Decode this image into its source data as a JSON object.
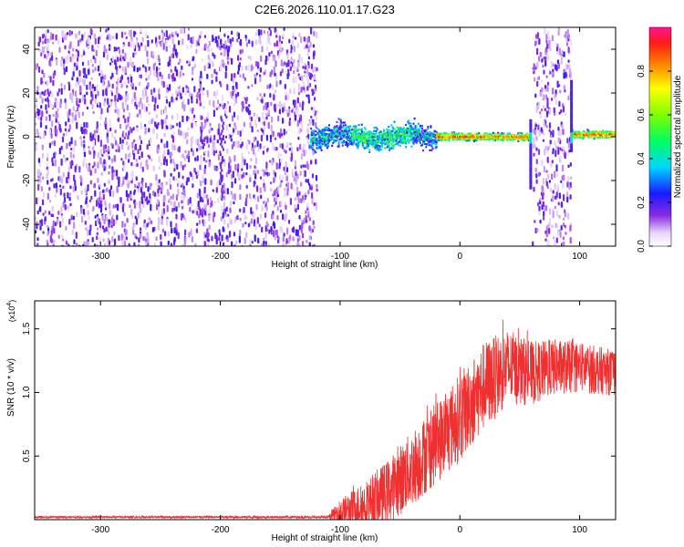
{
  "title": "C2E6.2026.110.01.17.G23",
  "colors": {
    "snr_line": "#ee3030",
    "axis": "#000000",
    "background": "#ffffff"
  },
  "chart_data": [
    {
      "type": "heatmap",
      "name": "spectrogram",
      "xlabel": "Height of straight line (km)",
      "ylabel": "Frequency (Hz)",
      "xlim": [
        -355,
        130
      ],
      "ylim": [
        -50,
        50
      ],
      "xticks": [
        -300,
        -200,
        -100,
        0,
        100
      ],
      "xtick_labels": [
        "-300",
        "-200",
        "-100",
        "0",
        "100"
      ],
      "yticks": [
        -40,
        -20,
        0,
        20,
        40
      ],
      "ytick_labels": [
        "-40",
        "-20",
        "0",
        "20",
        "40"
      ],
      "colorbar": {
        "label": "Normalized spectral amplitude",
        "range": [
          0,
          1
        ],
        "ticks": [
          0.0,
          0.2,
          0.4,
          0.6,
          0.8
        ],
        "tick_labels": [
          "0.0",
          "0.2",
          "0.4",
          "0.6",
          "0.8"
        ]
      },
      "regions": [
        {
          "name": "broadband noise",
          "x_range": [
            -355,
            -120
          ],
          "freq_range": [
            -50,
            50
          ],
          "amplitude": 0.1
        },
        {
          "name": "spread signal band",
          "x_range": [
            -125,
            -20
          ],
          "center_hz": 0,
          "half_width_hz": 5,
          "amplitude": 0.5
        },
        {
          "name": "narrow carrier",
          "x_range": [
            -20,
            58
          ],
          "center_hz": 0,
          "half_width_hz": 1.5,
          "amplitude": 0.9
        },
        {
          "name": "noise gap",
          "x_range": [
            60,
            92
          ],
          "freq_range": [
            -50,
            50
          ],
          "amplitude": 0.1
        },
        {
          "name": "narrow carrier after gap",
          "x_range": [
            93,
            130
          ],
          "center_hz": 1,
          "half_width_hz": 1.5,
          "amplitude": 0.9
        }
      ]
    },
    {
      "type": "line",
      "name": "snr",
      "xlabel": "Height of straight line (km)",
      "ylabel": "SNR (10 * v/v)",
      "yscale_label": "(x10",
      "yscale_exponent": "4",
      "yscale_close": ")",
      "xlim": [
        -355,
        130
      ],
      "ylim": [
        0,
        1.72
      ],
      "xticks": [
        -300,
        -200,
        -100,
        0,
        100
      ],
      "xtick_labels": [
        "-300",
        "-200",
        "-100",
        "0",
        "100"
      ],
      "yticks": [
        0.5,
        1.0,
        1.5
      ],
      "ytick_labels": [
        "0.5",
        "1.0",
        "1.5"
      ],
      "series": [
        {
          "name": "SNR",
          "color": "#ee3030",
          "envelope_x": [
            -355,
            -110,
            -100,
            -80,
            -60,
            -40,
            -20,
            0,
            20,
            40,
            60,
            80,
            100,
            130
          ],
          "envelope_mean": [
            0.02,
            0.02,
            0.06,
            0.12,
            0.22,
            0.4,
            0.6,
            0.8,
            1.05,
            1.2,
            1.15,
            1.2,
            1.2,
            1.15
          ],
          "envelope_spread": [
            0.008,
            0.01,
            0.1,
            0.18,
            0.25,
            0.3,
            0.32,
            0.35,
            0.35,
            0.3,
            0.25,
            0.22,
            0.2,
            0.18
          ]
        }
      ]
    }
  ]
}
